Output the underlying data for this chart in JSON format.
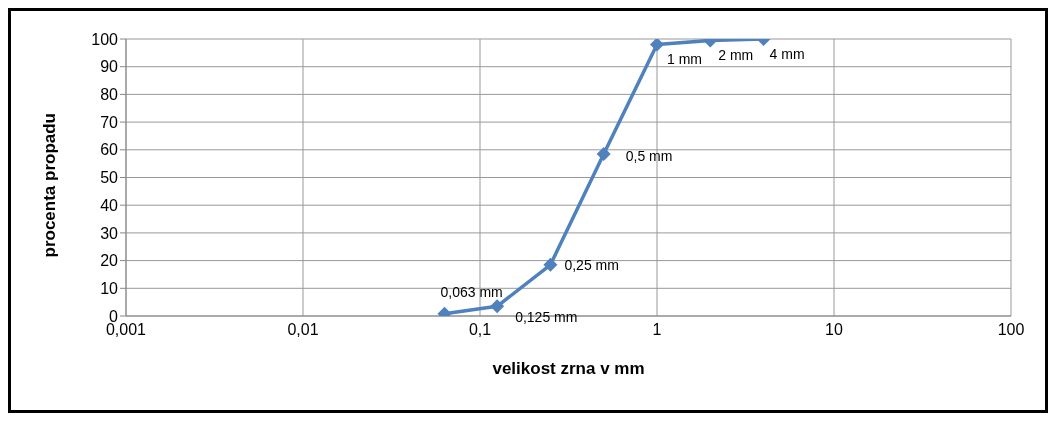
{
  "chart_data": {
    "type": "line",
    "xlabel": "velikost zrna v mm",
    "ylabel": "procenta propadu",
    "x": [
      0.063,
      0.125,
      0.25,
      0.5,
      1,
      2,
      4
    ],
    "series": [
      {
        "color": "#4f81bd",
        "values": [
          0.8,
          3.5,
          18.5,
          58.5,
          98,
          99.5,
          100
        ]
      }
    ],
    "xlim": [
      0.001,
      100
    ],
    "xticks": [
      {
        "value": 0.001,
        "label": "0,001"
      },
      {
        "value": 0.01,
        "label": "0,01"
      },
      {
        "value": 0.1,
        "label": "0,1"
      },
      {
        "value": 1,
        "label": "1"
      },
      {
        "value": 10,
        "label": "10"
      },
      {
        "value": 100,
        "label": "100"
      }
    ],
    "ylim": [
      0,
      100
    ],
    "yticks": [
      0,
      10,
      20,
      30,
      40,
      50,
      60,
      70,
      80,
      90,
      100
    ],
    "log": "x",
    "grid": true,
    "marker": "diamond",
    "line_style": "solid",
    "legend": false,
    "annotations": [
      {
        "text": "0,063 mm",
        "x": 0.063,
        "y": 0.8
      },
      {
        "text": "0,125 mm",
        "x": 0.125,
        "y": 3.5
      },
      {
        "text": "0,25 mm",
        "x": 0.25,
        "y": 18.5
      },
      {
        "text": "0,5 mm",
        "x": 0.5,
        "y": 58.5
      },
      {
        "text": "1 mm",
        "x": 1,
        "y": 98
      },
      {
        "text": "2 mm",
        "x": 2,
        "y": 99.5
      },
      {
        "text": "4 mm",
        "x": 4,
        "y": 100
      }
    ]
  }
}
